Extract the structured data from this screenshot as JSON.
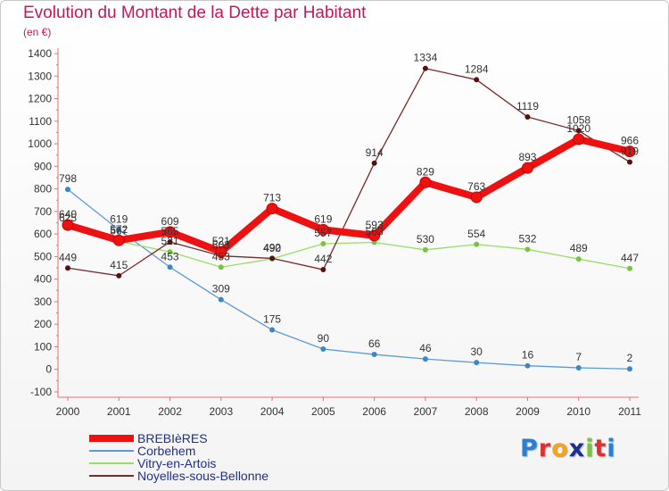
{
  "title": "Evolution du Montant de la Dette par Habitant",
  "unit_label": "(en €)",
  "logo": {
    "text": "Proxiti",
    "letters": [
      {
        "ch": "P",
        "color": "#2a7fd4"
      },
      {
        "ch": "r",
        "color": "#e3302f"
      },
      {
        "ch": "o",
        "color": "#f7a21b"
      },
      {
        "ch": "x",
        "color": "#1f2f8f"
      },
      {
        "ch": "i",
        "color": "#7cc242"
      },
      {
        "ch": "t",
        "color": "#e3302f"
      },
      {
        "ch": "i",
        "color": "#2a7fd4"
      }
    ]
  },
  "chart_data": {
    "type": "line",
    "title": "Evolution du Montant de la Dette par Habitant",
    "ylabel": "(en €)",
    "xlabel": "",
    "x": [
      "2000",
      "2001",
      "2002",
      "2003",
      "2004",
      "2005",
      "2006",
      "2007",
      "2008",
      "2009",
      "2010",
      "2011"
    ],
    "ylim": [
      -100,
      1400
    ],
    "yticks": [
      "-100",
      "0",
      "100",
      "200",
      "300",
      "400",
      "500",
      "600",
      "700",
      "800",
      "900",
      "1000",
      "1100",
      "1200",
      "1300",
      "1400"
    ],
    "grid": false,
    "legend_position": "bottom-left",
    "series": [
      {
        "name": "BREBIèRES",
        "color": "#ee1111",
        "marker_fill": "#ee1111",
        "bold": true,
        "values": [
          640,
          572,
          609,
          521,
          713,
          619,
          593,
          829,
          763,
          893,
          1020,
          966
        ],
        "labels": [
          "640",
          "572",
          "609",
          "521",
          "713",
          "619",
          "593",
          "829",
          "763",
          "893",
          "1020",
          "966"
        ]
      },
      {
        "name": "Corbehem",
        "color": "#5b9bd5",
        "marker_fill": "#3a87c8",
        "bold": false,
        "values": [
          798,
          619,
          453,
          309,
          175,
          90,
          66,
          46,
          30,
          16,
          7,
          2
        ],
        "labels": [
          "798",
          "619",
          "453",
          "309",
          "175",
          "90",
          "66",
          "46",
          "30",
          "16",
          "7",
          "2"
        ]
      },
      {
        "name": "Vitry-en-Artois",
        "color": "#99dd66",
        "marker_fill": "#7cc242",
        "bold": false,
        "values": [
          625,
          567,
          521,
          453,
          490,
          557,
          563,
          530,
          554,
          532,
          489,
          447
        ],
        "labels": [
          "625",
          "567",
          "521",
          "453",
          "490",
          "557",
          "563",
          "530",
          "554",
          "532",
          "489",
          "447"
        ]
      },
      {
        "name": "Noyelles-sous-Bellonne",
        "color": "#7a2a2a",
        "marker_fill": "#5a1010",
        "bold": false,
        "values": [
          449,
          415,
          565,
          503,
          492,
          442,
          914,
          1334,
          1284,
          1119,
          1058,
          919
        ],
        "labels": [
          "449",
          "415",
          "565",
          "503",
          "492",
          "442",
          "914",
          "1334",
          "1284",
          "1119",
          "1058",
          "919"
        ]
      }
    ]
  }
}
